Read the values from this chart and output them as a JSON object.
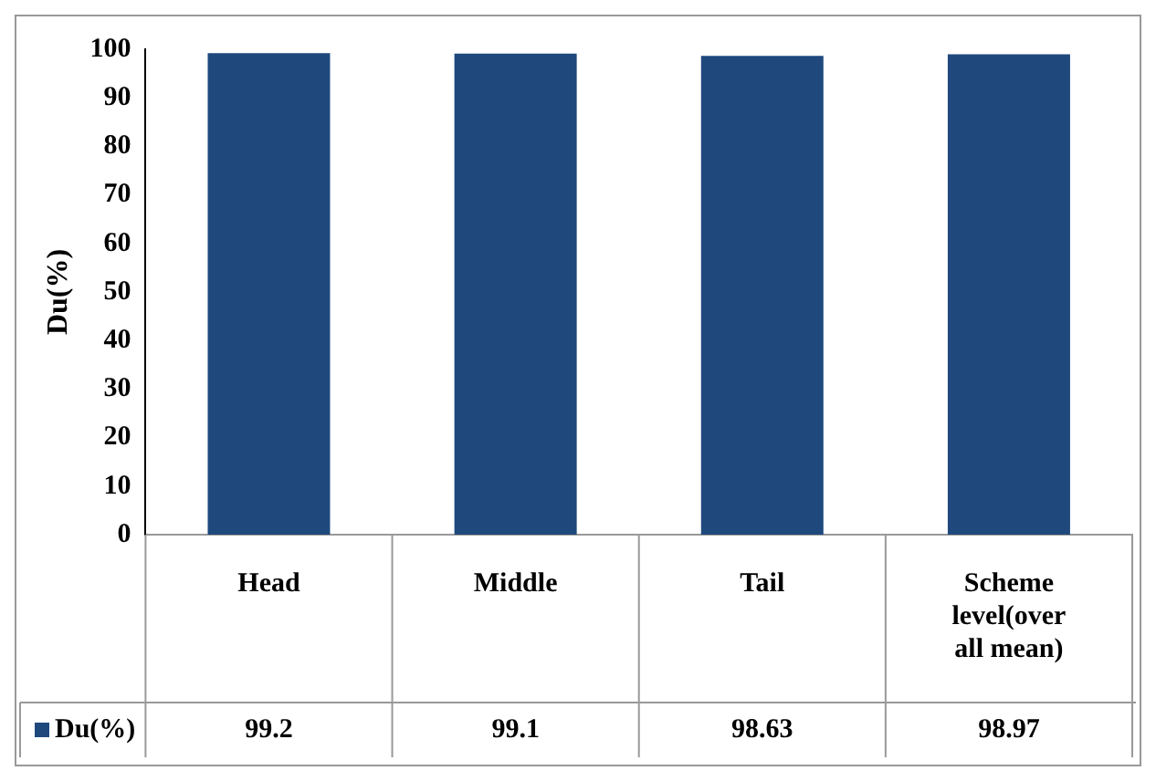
{
  "chart_data": {
    "type": "bar",
    "ylabel": "Du(%)",
    "categories": [
      "Head",
      "Middle",
      "Tail",
      "Scheme level(over all mean)"
    ],
    "series": [
      {
        "name": "Du(%)",
        "color": "#1f497d",
        "values": [
          99.2,
          99.1,
          98.63,
          98.97
        ]
      }
    ],
    "ylim": [
      0,
      100
    ],
    "yticks": [
      0,
      10,
      20,
      30,
      40,
      50,
      60,
      70,
      80,
      90,
      100
    ],
    "grid": false,
    "legend": "bottom",
    "data_labels": true
  }
}
